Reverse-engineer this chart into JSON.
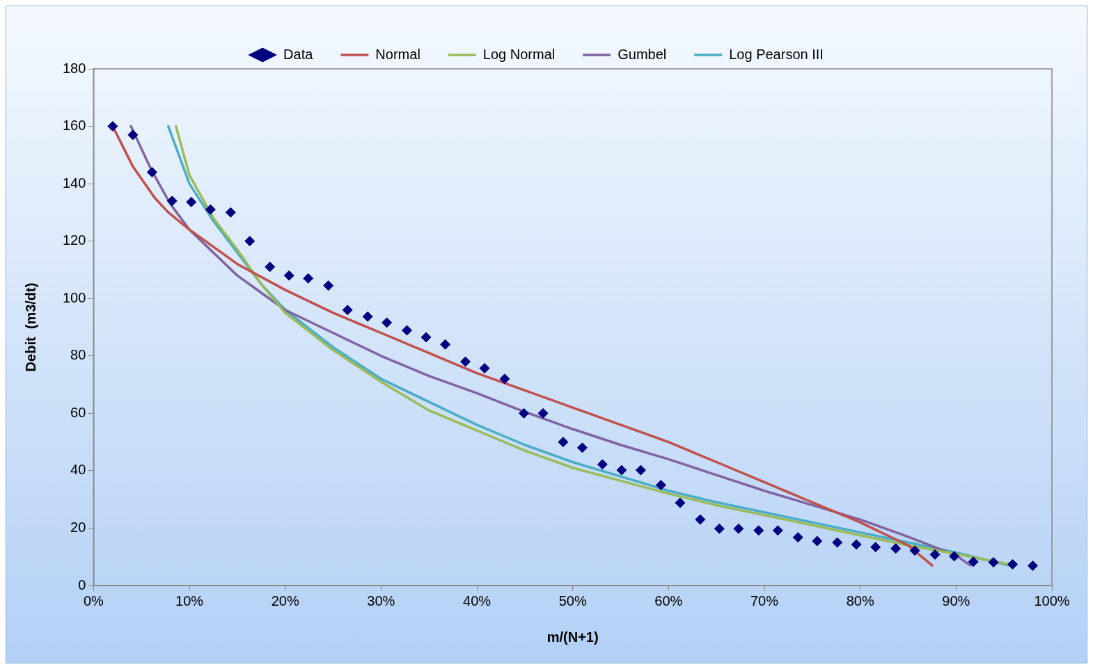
{
  "chart_data": {
    "type": "scatter",
    "xlabel": "m/(N+1)",
    "ylabel": "Debit  (m3/dt)",
    "xlim": [
      0,
      100
    ],
    "ylim": [
      0,
      180
    ],
    "xticks": [
      {
        "value": 0,
        "label": "0%"
      },
      {
        "value": 10,
        "label": "10%"
      },
      {
        "value": 20,
        "label": "20%"
      },
      {
        "value": 30,
        "label": "30%"
      },
      {
        "value": 40,
        "label": "40%"
      },
      {
        "value": 50,
        "label": "50%"
      },
      {
        "value": 60,
        "label": "60%"
      },
      {
        "value": 70,
        "label": "70%"
      },
      {
        "value": 80,
        "label": "80%"
      },
      {
        "value": 90,
        "label": "90%"
      },
      {
        "value": 100,
        "label": "100%"
      }
    ],
    "yticks": [
      0,
      20,
      40,
      60,
      80,
      100,
      120,
      140,
      160,
      180
    ],
    "grid": false,
    "legend": "top",
    "series": [
      {
        "name": "Data",
        "marker": "diamond",
        "color": "#000080",
        "x": [
          2.0,
          4.1,
          6.1,
          8.2,
          10.2,
          12.2,
          14.3,
          16.3,
          18.4,
          20.4,
          22.4,
          24.5,
          26.5,
          28.6,
          30.6,
          32.7,
          34.7,
          36.7,
          38.8,
          40.8,
          42.9,
          44.9,
          46.9,
          49.0,
          51.0,
          53.1,
          55.1,
          57.1,
          59.2,
          61.2,
          63.3,
          65.3,
          67.3,
          69.4,
          71.4,
          73.5,
          75.5,
          77.6,
          79.6,
          81.6,
          83.7,
          85.7,
          87.8,
          89.8,
          91.8,
          93.9,
          95.9,
          98.0
        ],
        "values": [
          160,
          157,
          144,
          134,
          133.6,
          131,
          130,
          120,
          111,
          108,
          107,
          104.5,
          96,
          93.7,
          91.6,
          88.9,
          86.5,
          84,
          78,
          75.7,
          72,
          60,
          60,
          50,
          48,
          42.2,
          40.2,
          40.2,
          35,
          28.8,
          23,
          19.8,
          19.8,
          19.2,
          19.2,
          16.8,
          15.5,
          15,
          14.3,
          13.4,
          12.9,
          12.2,
          10.8,
          10.2,
          8.3,
          8.1,
          7.4,
          6.9
        ]
      },
      {
        "name": "Normal",
        "type": "line",
        "marker": "none",
        "color": "#c0504d",
        "x": [
          2,
          4.1,
          6.4,
          7.8,
          10,
          15,
          20,
          25,
          30,
          35,
          40,
          45,
          50,
          55,
          60,
          65,
          70,
          75,
          80,
          85,
          87.5
        ],
        "values": [
          160,
          146,
          135,
          130,
          124,
          112,
          103,
          95,
          88,
          81,
          74,
          68,
          62,
          56,
          50,
          43,
          36,
          29,
          22,
          14,
          7
        ]
      },
      {
        "name": "Log Normal",
        "type": "line",
        "marker": "none",
        "color": "#9bbb59",
        "x": [
          8.6,
          10,
          12.5,
          15,
          17.5,
          20,
          25,
          30,
          35,
          40,
          45,
          50,
          55,
          60,
          65,
          70,
          75,
          80,
          85,
          90,
          96.2
        ],
        "values": [
          160,
          143,
          128,
          117,
          105,
          95,
          82,
          71,
          61,
          54,
          47,
          41,
          36.5,
          32,
          28,
          24.5,
          21,
          17.5,
          14,
          11,
          7
        ]
      },
      {
        "name": "Gumbel",
        "type": "line",
        "marker": "none",
        "color": "#8064a2",
        "x": [
          3.9,
          6,
          8,
          10,
          12.5,
          15,
          17.5,
          20,
          25,
          30,
          35,
          40,
          45,
          50,
          55,
          60,
          65,
          70,
          75,
          80,
          85,
          90,
          91.5
        ],
        "values": [
          160,
          145,
          133,
          124,
          116,
          108,
          102,
          96,
          88,
          80,
          73,
          67,
          60.5,
          54.5,
          49,
          44,
          38.5,
          33,
          28,
          23,
          17,
          10.5,
          7
        ]
      },
      {
        "name": "Log Pearson III",
        "type": "line",
        "marker": "none",
        "color": "#4bacc6",
        "x": [
          7.8,
          10,
          12.5,
          15,
          17.5,
          20,
          25,
          30,
          35,
          40,
          45,
          50,
          55,
          60,
          65,
          70,
          75,
          80,
          85,
          90,
          95.5
        ],
        "values": [
          160,
          140,
          127,
          116,
          105,
          96,
          83,
          72,
          64,
          56,
          49,
          43,
          38,
          33,
          29,
          25.5,
          22,
          18.5,
          15,
          11.5,
          7
        ]
      }
    ]
  }
}
